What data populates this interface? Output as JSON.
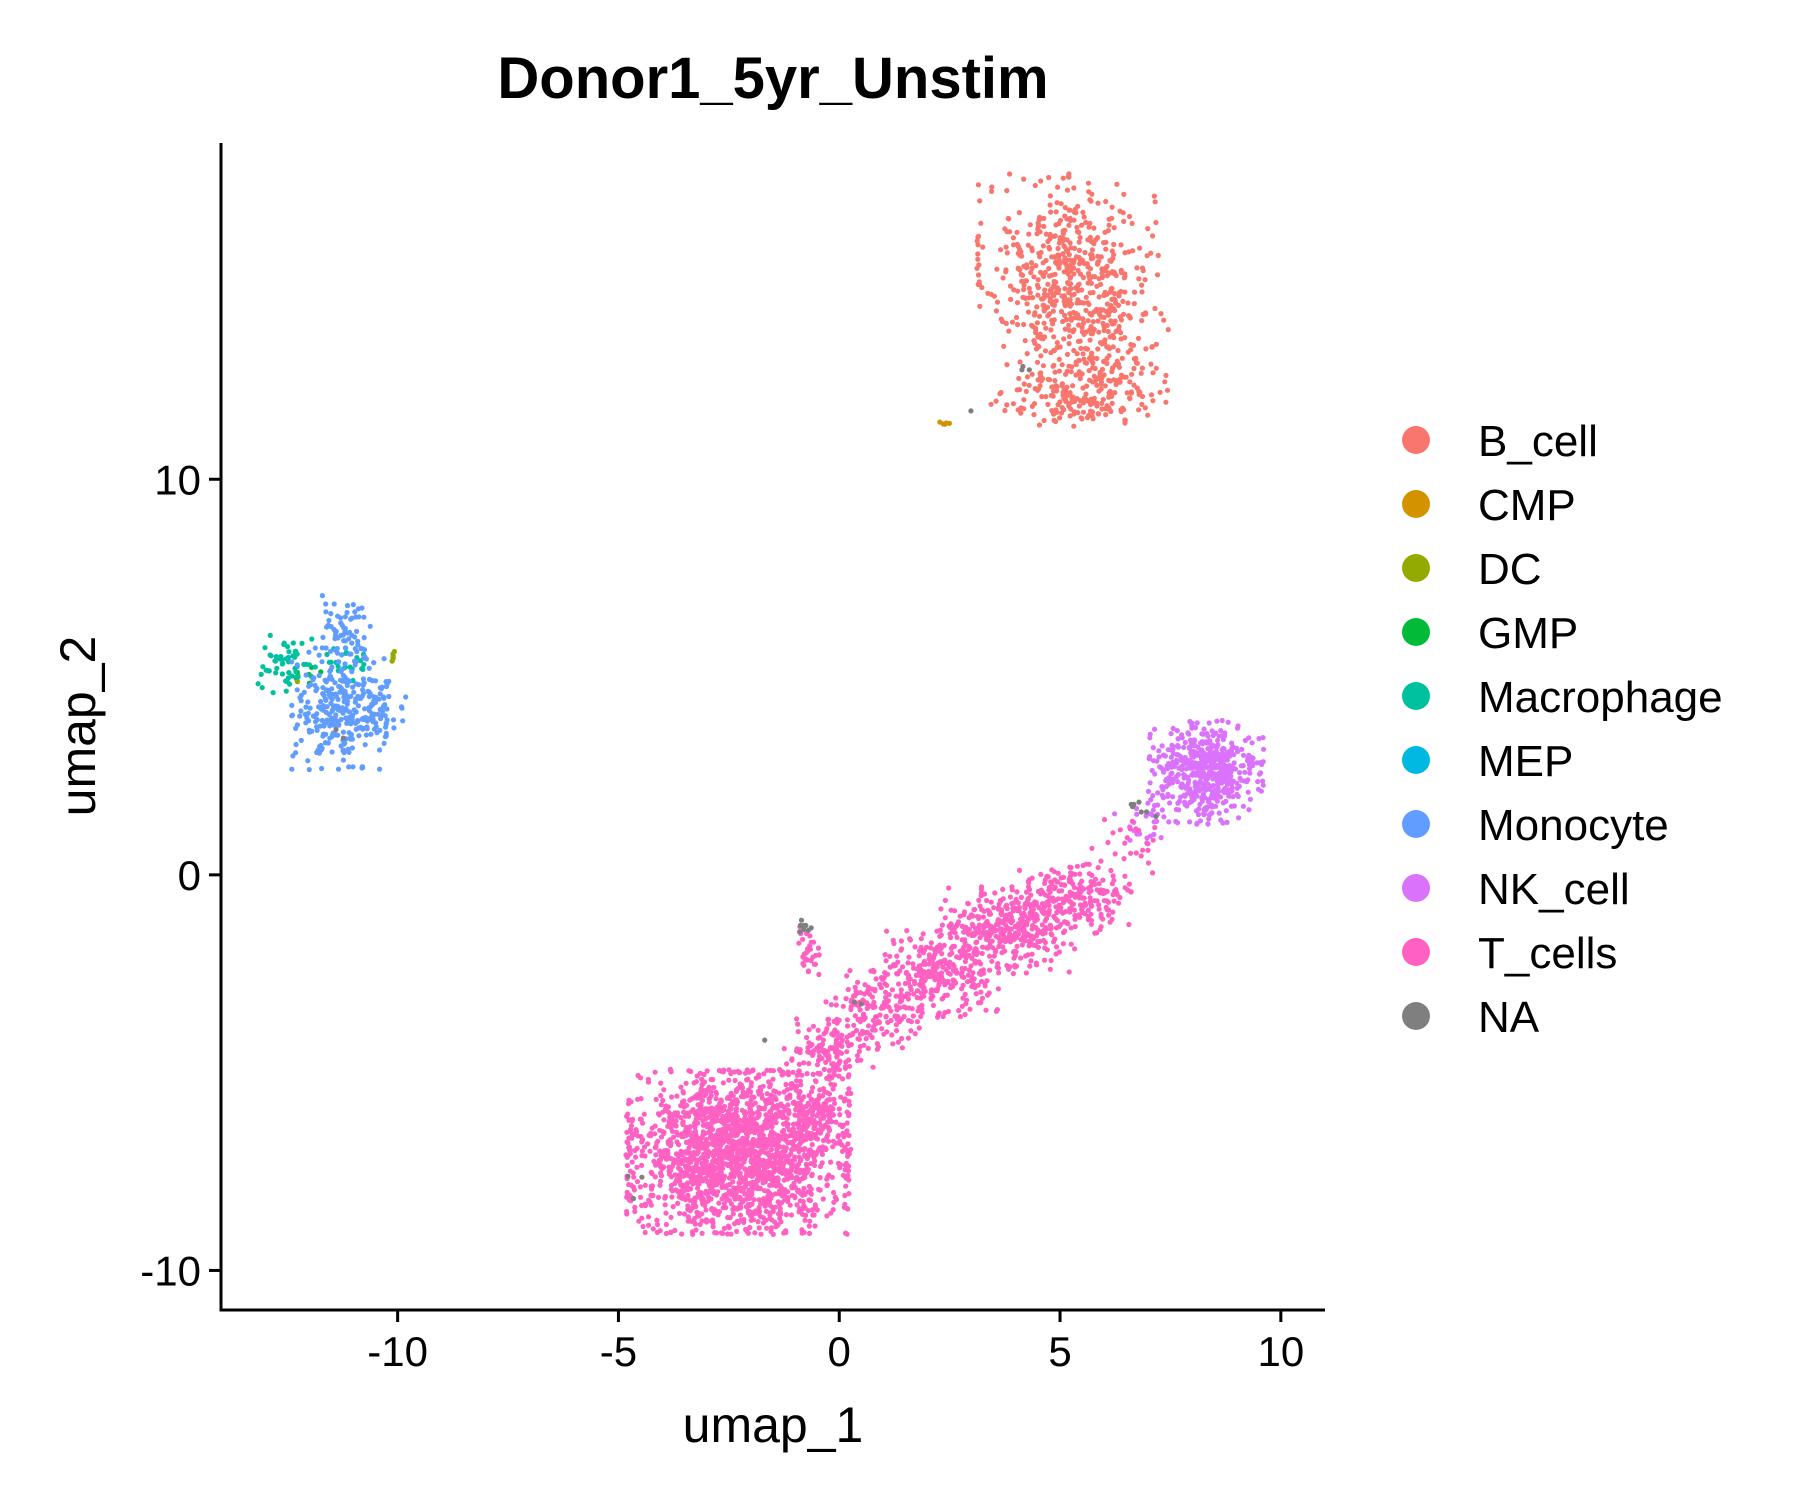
{
  "chart_data": {
    "type": "scatter",
    "title": "Donor1_5yr_Unstim",
    "xlabel": "umap_1",
    "ylabel": "umap_2",
    "xlim": [
      -14,
      11
    ],
    "ylim": [
      -11,
      18.5
    ],
    "xticks": [
      -10,
      -5,
      0,
      5,
      10
    ],
    "yticks": [
      -10,
      0,
      10
    ],
    "grid": false,
    "legend_position": "right",
    "series": [
      {
        "name": "B_cell",
        "color": "#F8766D",
        "clusters": [
          {
            "cx": 5.2,
            "cy": 15.3,
            "sx": 0.95,
            "sy": 1.1,
            "n": 520
          },
          {
            "cx": 5.8,
            "cy": 13.2,
            "sx": 0.75,
            "sy": 0.8,
            "n": 200
          },
          {
            "cx": 5.4,
            "cy": 12.1,
            "sx": 0.9,
            "sy": 0.35,
            "n": 150
          }
        ]
      },
      {
        "name": "CMP",
        "color": "#D39200",
        "clusters": [
          {
            "cx": 2.4,
            "cy": 11.4,
            "sx": 0.06,
            "sy": 0.04,
            "n": 5
          }
        ]
      },
      {
        "name": "DC",
        "color": "#93AA00",
        "clusters": [
          {
            "cx": -10.1,
            "cy": 5.5,
            "sx": 0.07,
            "sy": 0.07,
            "n": 6
          },
          {
            "cx": -12.2,
            "cy": 5.0,
            "sx": 0.1,
            "sy": 0.1,
            "n": 3
          }
        ]
      },
      {
        "name": "GMP",
        "color": "#00BA38",
        "clusters": [
          {
            "cx": -12.0,
            "cy": 5.2,
            "sx": 0.2,
            "sy": 0.2,
            "n": 5
          }
        ]
      },
      {
        "name": "Macrophage",
        "color": "#00C19F",
        "clusters": [
          {
            "cx": -12.5,
            "cy": 5.3,
            "sx": 0.3,
            "sy": 0.35,
            "n": 55
          },
          {
            "cx": -11.3,
            "cy": 5.3,
            "sx": 0.35,
            "sy": 0.25,
            "n": 25
          }
        ]
      },
      {
        "name": "MEP",
        "color": "#00B9E3",
        "clusters": []
      },
      {
        "name": "Monocyte",
        "color": "#619CFF",
        "clusters": [
          {
            "cx": -11.3,
            "cy": 4.2,
            "sx": 0.5,
            "sy": 0.7,
            "n": 300
          },
          {
            "cx": -11.2,
            "cy": 6.2,
            "sx": 0.3,
            "sy": 0.4,
            "n": 60
          },
          {
            "cx": -10.4,
            "cy": 4.1,
            "sx": 0.3,
            "sy": 0.4,
            "n": 40
          }
        ]
      },
      {
        "name": "NK_cell",
        "color": "#DB72FB",
        "clusters": [
          {
            "cx": 8.3,
            "cy": 2.6,
            "sx": 0.6,
            "sy": 0.6,
            "n": 520
          },
          {
            "cx": 7.0,
            "cy": 1.3,
            "sx": 0.35,
            "sy": 0.35,
            "n": 25
          }
        ]
      },
      {
        "name": "T_cells",
        "color": "#FF61C3",
        "clusters": [
          {
            "cx": -2.3,
            "cy": -7.0,
            "sx": 1.15,
            "sy": 0.95,
            "n": 2000
          },
          {
            "cx": -0.5,
            "cy": -6.0,
            "sx": 0.35,
            "sy": 0.45,
            "n": 150
          },
          {
            "cx": -0.2,
            "cy": -4.4,
            "sx": 0.5,
            "sy": 0.35,
            "n": 130
          },
          {
            "cx": 0.8,
            "cy": -3.4,
            "sx": 0.5,
            "sy": 0.45,
            "n": 160
          },
          {
            "cx": 2.3,
            "cy": -2.5,
            "sx": 0.6,
            "sy": 0.5,
            "n": 260
          },
          {
            "cx": 3.8,
            "cy": -1.4,
            "sx": 0.7,
            "sy": 0.5,
            "n": 380
          },
          {
            "cx": 5.3,
            "cy": -0.6,
            "sx": 0.6,
            "sy": 0.4,
            "n": 220
          },
          {
            "cx": -0.7,
            "cy": -1.9,
            "sx": 0.12,
            "sy": 0.3,
            "n": 30
          },
          {
            "cx": 6.6,
            "cy": 0.8,
            "sx": 0.4,
            "sy": 0.35,
            "n": 25
          }
        ]
      },
      {
        "name": "NA",
        "color": "#7F7F7F",
        "clusters": [
          {
            "cx": -0.8,
            "cy": -1.3,
            "sx": 0.08,
            "sy": 0.12,
            "n": 8
          },
          {
            "cx": 6.8,
            "cy": 1.8,
            "sx": 0.12,
            "sy": 0.1,
            "n": 8
          },
          {
            "cx": 4.2,
            "cy": 12.8,
            "sx": 0.05,
            "sy": 0.05,
            "n": 3
          },
          {
            "cx": 2.9,
            "cy": 11.7,
            "sx": 0.05,
            "sy": 0.05,
            "n": 1
          },
          {
            "cx": -1.7,
            "cy": -4.2,
            "sx": 0.05,
            "sy": 0.05,
            "n": 1
          },
          {
            "cx": 0.5,
            "cy": -3.2,
            "sx": 0.1,
            "sy": 0.1,
            "n": 2
          },
          {
            "cx": -11.3,
            "cy": 3.6,
            "sx": 0.2,
            "sy": 0.2,
            "n": 2
          },
          {
            "cx": -4.8,
            "cy": -7.5,
            "sx": 0.2,
            "sy": 0.4,
            "n": 3
          },
          {
            "cx": 7.2,
            "cy": 1.5,
            "sx": 0.05,
            "sy": 0.05,
            "n": 1
          }
        ]
      }
    ]
  }
}
